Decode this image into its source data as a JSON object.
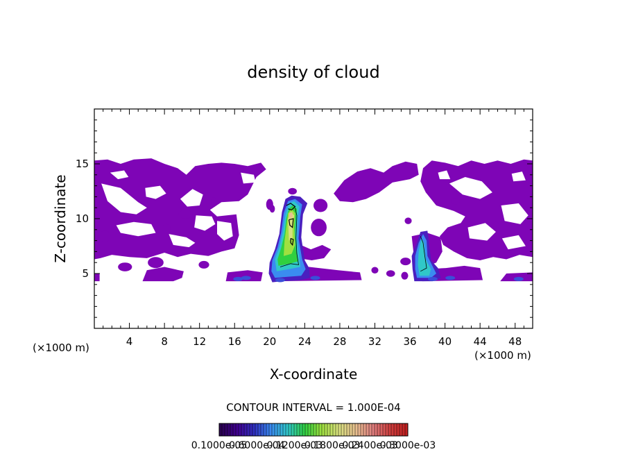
{
  "chart_data": {
    "type": "heatmap",
    "title": "density of cloud",
    "xlabel": "X-coordinate",
    "ylabel": "Z-coordinate",
    "x_unit_label": "(×1000 m)",
    "y_unit_label": "(×1000 m)",
    "xlim": [
      0,
      50
    ],
    "ylim": [
      0,
      20
    ],
    "x_ticks": [
      "4",
      "8",
      "12",
      "16",
      "20",
      "24",
      "28",
      "32",
      "36",
      "40",
      "44",
      "48"
    ],
    "y_ticks": [
      "5",
      "10",
      "15"
    ],
    "x_tick_values": [
      4,
      8,
      12,
      16,
      20,
      24,
      28,
      32,
      36,
      40,
      44,
      48
    ],
    "y_tick_values": [
      5,
      10,
      15
    ],
    "contour_interval_label": "CONTOUR INTERVAL = 1.000E-04",
    "colorbar_labels": [
      "0.1000e-05",
      "0.6000e-04",
      "0.1200e-03",
      "0.1800e-03",
      "0.2400e-03",
      "0.3000e-03"
    ],
    "colorbar_value_range": [
      1e-06,
      0.000351
    ],
    "colorbar_levels": [
      "#2a0050",
      "#400090",
      "#3030c0",
      "#3a8cf0",
      "#30c8c8",
      "#30d040",
      "#a0e040",
      "#d8e080",
      "#e8c090",
      "#e08080",
      "#d04040",
      "#c02020"
    ],
    "regions": [
      {
        "kind": "background_cloud",
        "color": "#7e05b6",
        "x": [
          0,
          20
        ],
        "z": [
          4.3,
          15.5
        ]
      },
      {
        "kind": "background_cloud",
        "color": "#7e05b6",
        "x": [
          23.5,
          36.5
        ],
        "z": [
          10.7,
          15.3
        ]
      },
      {
        "kind": "background_cloud",
        "color": "#7e05b6",
        "x": [
          37.5,
          50
        ],
        "z": [
          4.3,
          15.5
        ]
      },
      {
        "kind": "convective_core",
        "x_center": 22.5,
        "z_range": [
          4.2,
          12
        ],
        "peak_density": 0.000265
      },
      {
        "kind": "convective_core",
        "x_center": 37.5,
        "z_range": [
          4.3,
          8.8
        ],
        "peak_density": 9e-05
      }
    ]
  }
}
